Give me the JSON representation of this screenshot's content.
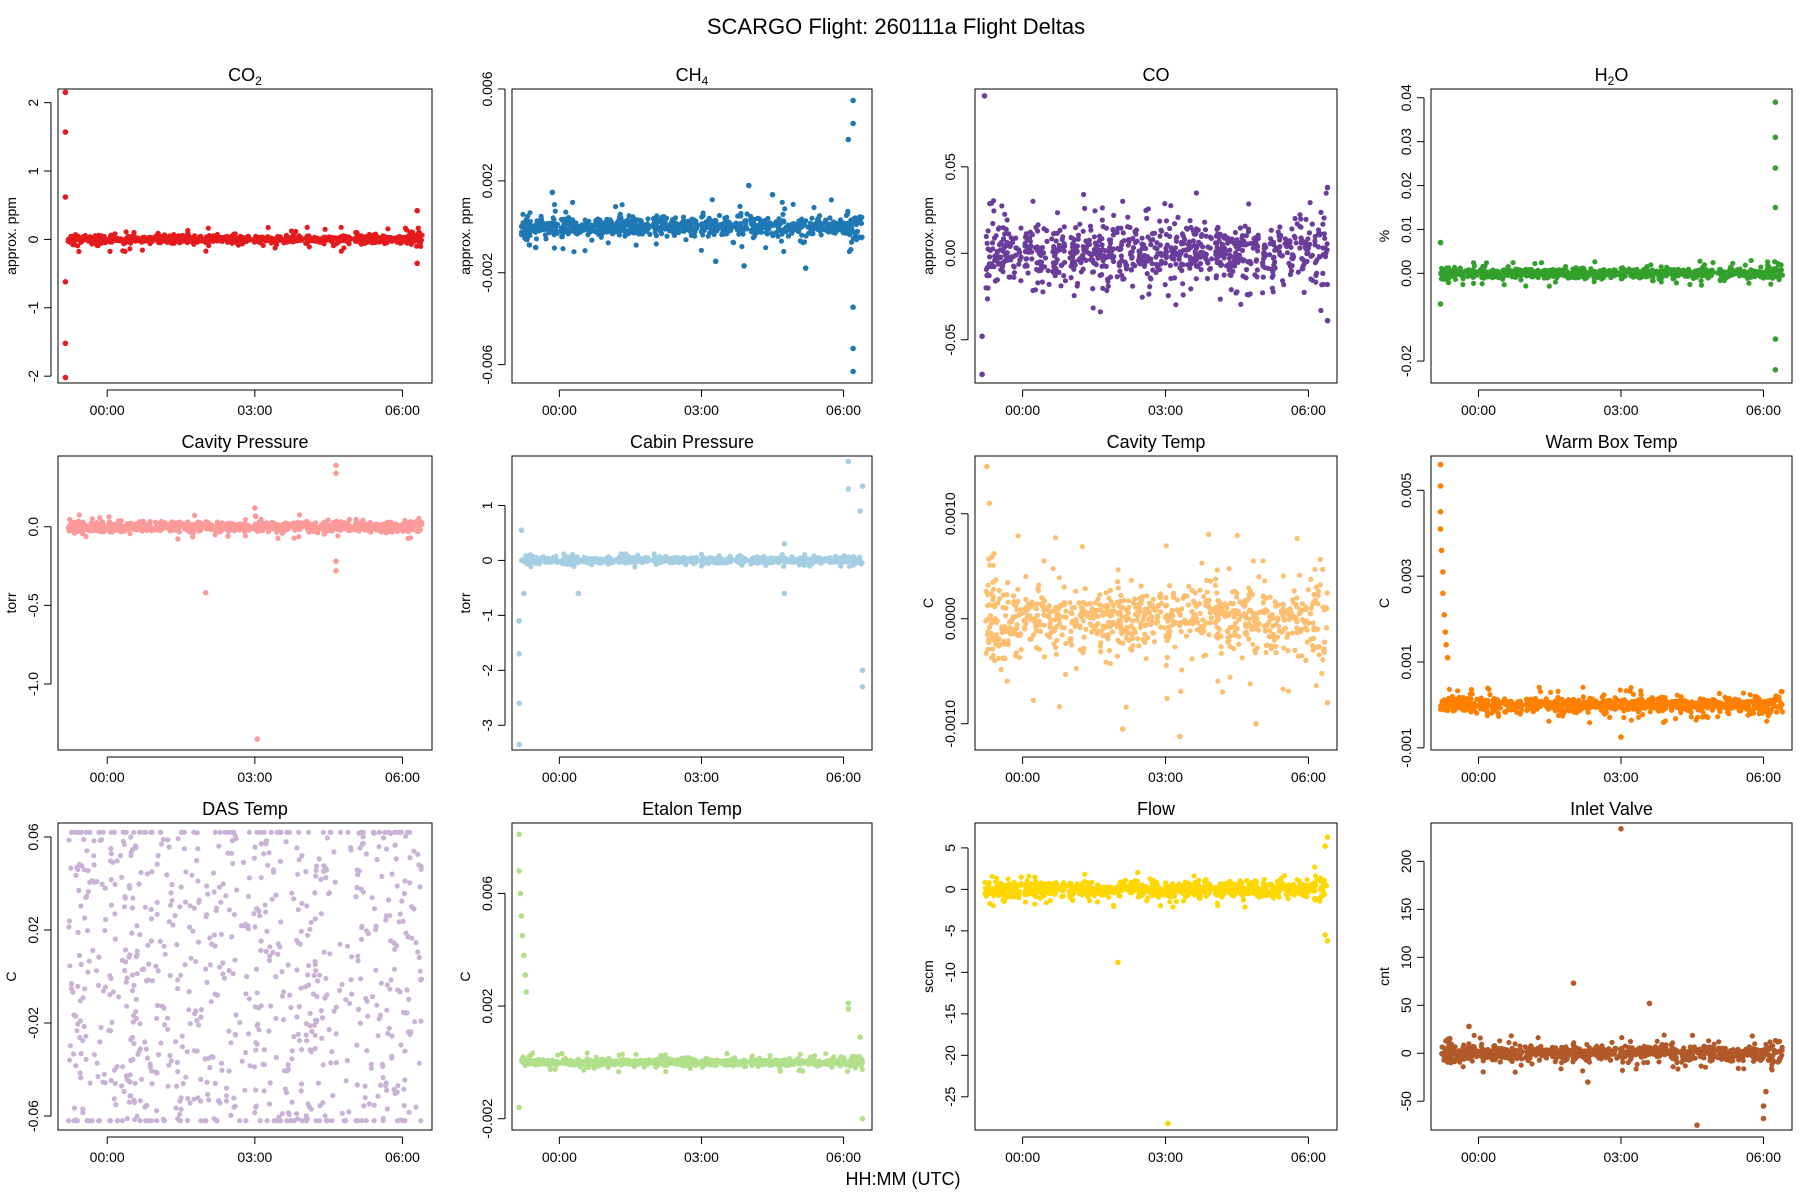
{
  "figure": {
    "title": "SCARGO Flight: 260111a  Flight Deltas",
    "xlabel": "HH:MM (UTC)"
  },
  "chart_data": [
    {
      "type": "scatter",
      "title": "CO",
      "title_sub": "2",
      "ylabel": "approx. ppm",
      "color": "#e41a1c",
      "ylim": [
        -2.1,
        2.2
      ],
      "yticks": [
        -2,
        -1,
        0,
        1,
        2
      ],
      "ytick_labels": [
        "-2",
        "-1",
        "0",
        "1",
        "2"
      ],
      "xticks": [
        "00:00",
        "03:00",
        "06:00"
      ],
      "band": 0.06,
      "spread": 0.18,
      "noise_seed": 1,
      "outliers": [
        [
          -0.85,
          2.15
        ],
        [
          -0.85,
          1.57
        ],
        [
          -0.85,
          0.62
        ],
        [
          -0.85,
          -0.62
        ],
        [
          -0.85,
          -1.52
        ],
        [
          -0.85,
          -2.02
        ],
        [
          6.3,
          0.42
        ],
        [
          6.3,
          -0.35
        ]
      ]
    },
    {
      "type": "scatter",
      "title": "CH",
      "title_sub": "4",
      "ylabel": "approx. ppm",
      "color": "#1f78b4",
      "ylim": [
        -0.0068,
        0.006
      ],
      "yticks": [
        -0.006,
        -0.002,
        0.002,
        0.006
      ],
      "ytick_labels": [
        "-0.006",
        "-0.002",
        "0.002",
        "0.006"
      ],
      "xticks": [
        "00:00",
        "03:00",
        "06:00"
      ],
      "band": 0.00045,
      "spread": 0.0012,
      "noise_seed": 2,
      "outliers": [
        [
          -0.15,
          0.0015
        ],
        [
          -0.5,
          -0.0009
        ],
        [
          3.3,
          -0.0015
        ],
        [
          3.9,
          -0.0017
        ],
        [
          4.0,
          0.0018
        ],
        [
          4.5,
          0.0014
        ],
        [
          5.2,
          -0.0018
        ],
        [
          6.2,
          0.0055
        ],
        [
          6.2,
          0.0045
        ],
        [
          6.2,
          -0.0035
        ],
        [
          6.2,
          -0.0063
        ],
        [
          6.1,
          0.0038
        ],
        [
          6.2,
          -0.0053
        ]
      ]
    },
    {
      "type": "scatter",
      "title": "CO",
      "title_sub": "",
      "ylabel": "approx. ppm",
      "color": "#6a3d9a",
      "ylim": [
        -0.075,
        0.095
      ],
      "yticks": [
        -0.05,
        0.0,
        0.05
      ],
      "ytick_labels": [
        "-0.05",
        "0.00",
        "0.05"
      ],
      "xticks": [
        "00:00",
        "03:00",
        "06:00"
      ],
      "band": 0.02,
      "spread": 0.035,
      "noise_seed": 3,
      "outliers": [
        [
          -0.8,
          0.091
        ],
        [
          -0.85,
          -0.07
        ],
        [
          -0.85,
          -0.048
        ],
        [
          6.4,
          -0.039
        ],
        [
          6.4,
          0.038
        ]
      ]
    },
    {
      "type": "scatter",
      "title": "H",
      "title_sub": "2",
      "title_suffix": "O",
      "ylabel": "%",
      "color": "#33a02c",
      "ylim": [
        -0.025,
        0.042
      ],
      "yticks": [
        -0.02,
        0.0,
        0.01,
        0.02,
        0.03,
        0.04
      ],
      "ytick_labels": [
        "-0.02",
        "0.00",
        "0.01",
        "0.02",
        "0.03",
        "0.04"
      ],
      "xticks": [
        "00:00",
        "03:00",
        "06:00"
      ],
      "band": 0.0012,
      "spread": 0.003,
      "noise_seed": 4,
      "outliers": [
        [
          6.25,
          0.039
        ],
        [
          6.25,
          0.031
        ],
        [
          6.25,
          0.024
        ],
        [
          6.25,
          0.015
        ],
        [
          6.25,
          -0.022
        ],
        [
          6.25,
          -0.015
        ],
        [
          -0.8,
          0.007
        ],
        [
          -0.8,
          -0.007
        ]
      ]
    },
    {
      "type": "scatter",
      "title": "Cavity Pressure",
      "ylabel": "torr",
      "color": "#fb9a99",
      "ylim": [
        -1.42,
        0.45
      ],
      "yticks": [
        -1.0,
        -0.5,
        0.0
      ],
      "ytick_labels": [
        "-1.0",
        "-0.5",
        "0.0"
      ],
      "xticks": [
        "00:00",
        "03:00",
        "06:00"
      ],
      "band": 0.035,
      "spread": 0.08,
      "noise_seed": 5,
      "outliers": [
        [
          2.0,
          -0.42
        ],
        [
          3.05,
          -1.35
        ],
        [
          4.65,
          0.39
        ],
        [
          4.65,
          0.34
        ],
        [
          4.65,
          -0.22
        ],
        [
          4.65,
          -0.28
        ],
        [
          3.0,
          0.12
        ]
      ]
    },
    {
      "type": "scatter",
      "title": "Cabin Pressure",
      "ylabel": "torr",
      "color": "#a6cee3",
      "ylim": [
        -3.45,
        1.9
      ],
      "yticks": [
        -3,
        -2,
        -1,
        0,
        1
      ],
      "ytick_labels": [
        "-3",
        "-2",
        "-1",
        "0",
        "1"
      ],
      "xticks": [
        "00:00",
        "03:00",
        "06:00"
      ],
      "band": 0.06,
      "spread": 0.12,
      "noise_seed": 6,
      "outliers": [
        [
          -0.85,
          -1.1
        ],
        [
          -0.85,
          -1.7
        ],
        [
          -0.85,
          -2.6
        ],
        [
          -0.85,
          -3.35
        ],
        [
          -0.8,
          0.55
        ],
        [
          -0.75,
          -0.6
        ],
        [
          0.4,
          -0.6
        ],
        [
          4.75,
          -0.6
        ],
        [
          4.75,
          0.3
        ],
        [
          6.1,
          1.8
        ],
        [
          6.1,
          1.3
        ],
        [
          6.4,
          1.35
        ],
        [
          6.4,
          -2.0
        ],
        [
          6.4,
          -2.3
        ],
        [
          6.35,
          0.9
        ]
      ]
    },
    {
      "type": "scatter",
      "title": "Cavity Temp",
      "ylabel": "C",
      "color": "#fdbf6f",
      "ylim": [
        -0.00125,
        0.00155
      ],
      "yticks": [
        -0.001,
        0.0,
        0.001
      ],
      "ytick_labels": [
        "-0.0010",
        "0.0000",
        "0.0010"
      ],
      "xticks": [
        "00:00",
        "03:00",
        "06:00"
      ],
      "band": 0.00032,
      "spread": 0.00085,
      "noise_seed": 7,
      "outliers": [
        [
          -0.75,
          0.00145
        ],
        [
          -0.7,
          0.0011
        ],
        [
          2.1,
          -0.00105
        ],
        [
          3.3,
          -0.00112
        ],
        [
          4.9,
          -0.001
        ],
        [
          6.4,
          -0.0008
        ]
      ]
    },
    {
      "type": "scatter",
      "title": "Warm Box Temp",
      "ylabel": "C",
      "color": "#ff7f00",
      "ylim": [
        -0.00105,
        0.0058
      ],
      "yticks": [
        -0.001,
        0.001,
        0.003,
        0.005
      ],
      "ytick_labels": [
        "-0.001",
        "0.001",
        "0.003",
        "0.005"
      ],
      "xticks": [
        "00:00",
        "03:00",
        "06:00"
      ],
      "band": 0.00018,
      "spread": 0.00042,
      "noise_seed": 8,
      "outliers": [
        [
          -0.8,
          0.0056
        ],
        [
          -0.8,
          0.0051
        ],
        [
          -0.8,
          0.0045
        ],
        [
          -0.8,
          0.0041
        ],
        [
          -0.78,
          0.0036
        ],
        [
          -0.75,
          0.0031
        ],
        [
          -0.75,
          0.0026
        ],
        [
          -0.72,
          0.0021
        ],
        [
          -0.7,
          0.0017
        ],
        [
          -0.68,
          0.0014
        ],
        [
          -0.65,
          0.0011
        ],
        [
          3.0,
          -0.00075
        ]
      ]
    },
    {
      "type": "scatter",
      "title": "DAS Temp",
      "ylabel": "C",
      "color": "#cab2d6",
      "ylim": [
        -0.066,
        0.066
      ],
      "yticks": [
        -0.06,
        -0.02,
        0.02,
        0.06
      ],
      "ytick_labels": [
        "-0.06",
        "-0.02",
        "0.02",
        "0.06"
      ],
      "xticks": [
        "00:00",
        "03:00",
        "06:00"
      ],
      "mode": "uniform",
      "range": [
        -0.062,
        0.062
      ],
      "noise_seed": 9,
      "outliers": []
    },
    {
      "type": "scatter",
      "title": "Etalon Temp",
      "ylabel": "C",
      "color": "#b2df8a",
      "ylim": [
        -0.0024,
        0.0085
      ],
      "yticks": [
        -0.002,
        0.002,
        0.006
      ],
      "ytick_labels": [
        "-0.002",
        "0.002",
        "0.006"
      ],
      "xticks": [
        "00:00",
        "03:00",
        "06:00"
      ],
      "band": 0.00012,
      "spread": 0.00035,
      "noise_seed": 10,
      "outliers": [
        [
          -0.85,
          0.0081
        ],
        [
          -0.85,
          0.0068
        ],
        [
          -0.82,
          0.006
        ],
        [
          -0.8,
          0.0052
        ],
        [
          -0.78,
          0.0045
        ],
        [
          -0.75,
          0.0038
        ],
        [
          -0.72,
          0.0031
        ],
        [
          -0.7,
          0.0025
        ],
        [
          -0.85,
          -0.0016
        ],
        [
          6.1,
          0.0021
        ],
        [
          6.1,
          0.0019
        ],
        [
          6.35,
          0.0009
        ],
        [
          6.4,
          -0.002
        ]
      ]
    },
    {
      "type": "scatter",
      "title": "Flow",
      "ylabel": "sccm",
      "color": "#ffd700",
      "ylim": [
        -29,
        8
      ],
      "yticks": [
        -25,
        -20,
        -15,
        -10,
        -5,
        0,
        5
      ],
      "ytick_labels": [
        "-25",
        "-20",
        "-15",
        "-10",
        "-5",
        "0",
        "5"
      ],
      "xticks": [
        "00:00",
        "03:00",
        "06:00"
      ],
      "band": 1.0,
      "spread": 2.2,
      "noise_seed": 11,
      "outliers": [
        [
          2.0,
          -8.8
        ],
        [
          3.05,
          -28.2
        ],
        [
          6.4,
          6.3
        ],
        [
          6.4,
          -6.2
        ],
        [
          6.35,
          5.2
        ],
        [
          6.35,
          -5.5
        ]
      ]
    },
    {
      "type": "scatter",
      "title": "Inlet Valve",
      "ylabel": "cnt",
      "color": "#b15928",
      "ylim": [
        -80,
        240
      ],
      "yticks": [
        -50,
        0,
        50,
        100,
        150,
        200
      ],
      "ytick_labels": [
        "-50",
        "0",
        "50",
        "100",
        "150",
        "200"
      ],
      "xticks": [
        "00:00",
        "03:00",
        "06:00"
      ],
      "band": 8,
      "spread": 20,
      "noise_seed": 12,
      "outliers": [
        [
          3.0,
          234
        ],
        [
          2.0,
          73
        ],
        [
          3.6,
          52
        ],
        [
          -0.2,
          28
        ],
        [
          4.6,
          -75
        ],
        [
          6.0,
          -68
        ],
        [
          6.0,
          -55
        ],
        [
          6.05,
          -40
        ],
        [
          2.3,
          -30
        ]
      ]
    }
  ]
}
